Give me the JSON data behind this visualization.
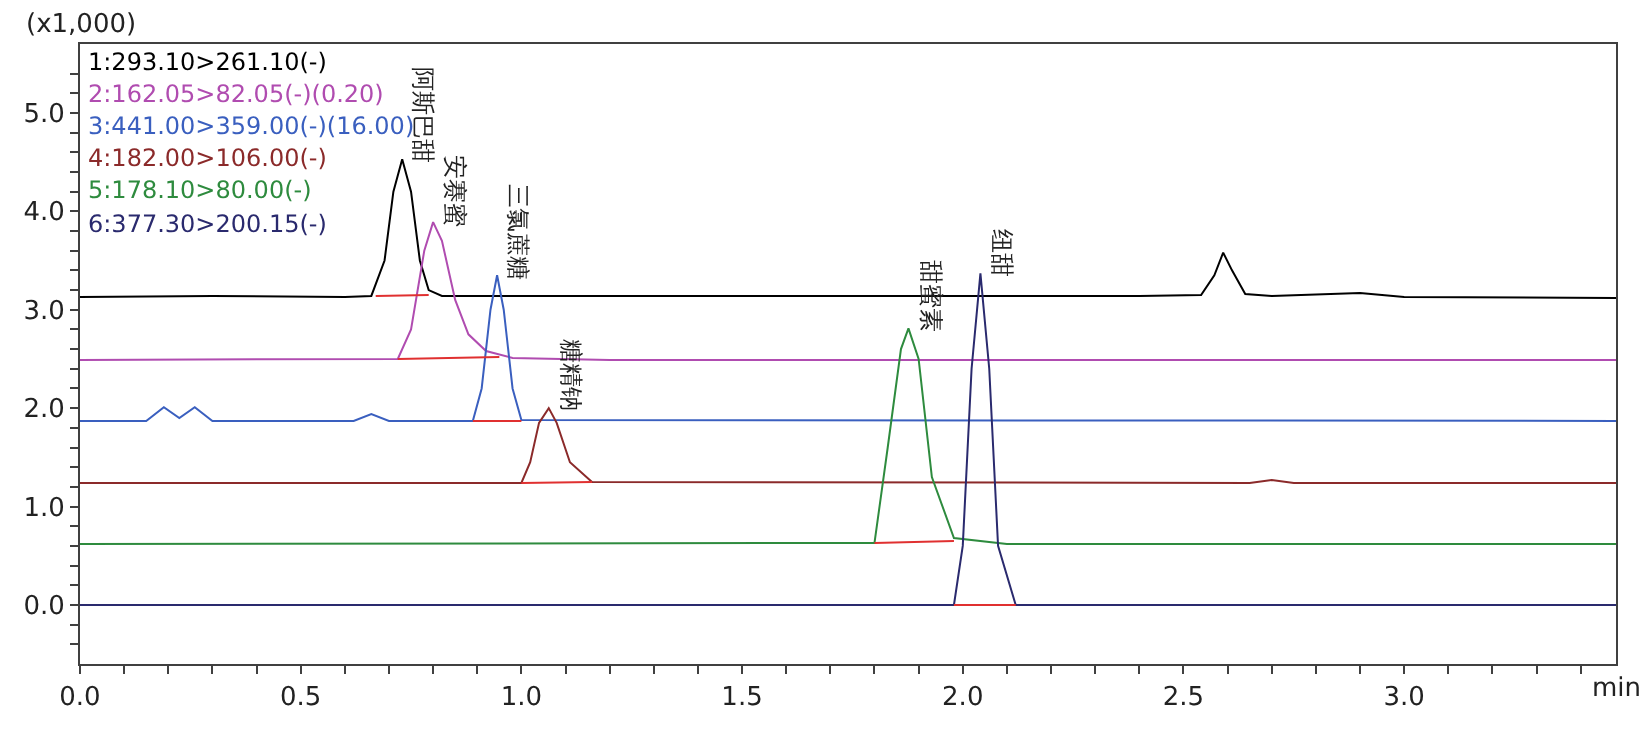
{
  "chart_data": {
    "type": "line",
    "ylabel": "(x1,000)",
    "xlabel": "min",
    "legend": "top left",
    "marker": "none",
    "line_style": "solid",
    "xlim": [
      0,
      3.48
    ],
    "ylim": [
      -0.6,
      5.7
    ],
    "xticks": [
      "0.0",
      {
        "value": 0.1,
        "label": null
      },
      {
        "value": 0.2,
        "label": null
      },
      {
        "value": 0.3,
        "label": null
      },
      {
        "value": 0.4,
        "label": null
      },
      {
        "value": 0.5,
        "label": "0.5"
      },
      {
        "value": 0.6,
        "label": null
      },
      {
        "value": 0.7,
        "label": null
      },
      {
        "value": 0.8,
        "label": null
      },
      {
        "value": 0.9,
        "label": null
      },
      {
        "value": 1.0,
        "label": "1.0"
      },
      {
        "value": 1.1,
        "label": null
      },
      {
        "value": 1.2,
        "label": null
      },
      {
        "value": 1.3,
        "label": null
      },
      {
        "value": 1.4,
        "label": null
      },
      {
        "value": 1.5,
        "label": "1.5"
      },
      {
        "value": 1.6,
        "label": null
      },
      {
        "value": 1.7,
        "label": null
      },
      {
        "value": 1.8,
        "label": null
      },
      {
        "value": 1.9,
        "label": null
      },
      {
        "value": 2.0,
        "label": "2.0"
      },
      {
        "value": 2.1,
        "label": null
      },
      {
        "value": 2.2,
        "label": null
      },
      {
        "value": 2.3,
        "label": null
      },
      {
        "value": 2.4,
        "label": null
      },
      {
        "value": 2.5,
        "label": "2.5"
      },
      {
        "value": 2.6,
        "label": null
      },
      {
        "value": 2.7,
        "label": null
      },
      {
        "value": 2.8,
        "label": null
      },
      {
        "value": 2.9,
        "label": null
      },
      {
        "value": 3.0,
        "label": "3.0"
      },
      {
        "value": 3.1,
        "label": null
      },
      {
        "value": 3.2,
        "label": null
      },
      {
        "value": 3.3,
        "label": null
      },
      {
        "value": 3.4,
        "label": null
      }
    ],
    "yticks": [
      {
        "value": -0.4,
        "label": null
      },
      {
        "value": -0.2,
        "label": null
      },
      {
        "value": 0,
        "label": "0.0"
      },
      {
        "value": 0.2,
        "label": null
      },
      {
        "value": 0.4,
        "label": null
      },
      {
        "value": 0.6,
        "label": null
      },
      {
        "value": 0.8,
        "label": null
      },
      {
        "value": 1,
        "label": "1.0"
      },
      {
        "value": 1.2,
        "label": null
      },
      {
        "value": 1.4,
        "label": null
      },
      {
        "value": 1.6,
        "label": null
      },
      {
        "value": 1.8,
        "label": null
      },
      {
        "value": 2,
        "label": "2.0"
      },
      {
        "value": 2.2,
        "label": null
      },
      {
        "value": 2.4,
        "label": null
      },
      {
        "value": 2.6,
        "label": null
      },
      {
        "value": 2.8,
        "label": null
      },
      {
        "value": 3,
        "label": "3.0"
      },
      {
        "value": 3.2,
        "label": null
      },
      {
        "value": 3.4,
        "label": null
      },
      {
        "value": 3.6,
        "label": null
      },
      {
        "value": 3.8,
        "label": null
      },
      {
        "value": 4,
        "label": "4.0"
      },
      {
        "value": 4.2,
        "label": null
      },
      {
        "value": 4.4,
        "label": null
      },
      {
        "value": 4.6,
        "label": null
      },
      {
        "value": 4.8,
        "label": null
      },
      {
        "value": 5,
        "label": "5.0"
      },
      {
        "value": 5.2,
        "label": null
      },
      {
        "value": 5.4,
        "label": null
      }
    ],
    "series": [
      {
        "name": "1:293.10>261.10(-)",
        "color": "#000000",
        "x": [
          0,
          0.3,
          0.6,
          0.66,
          0.69,
          0.71,
          0.73,
          0.75,
          0.77,
          0.79,
          0.82,
          0.9,
          1.5,
          2.4,
          2.54,
          2.57,
          2.59,
          2.61,
          2.64,
          2.7,
          2.9,
          3.0,
          3.48
        ],
        "values": [
          3.13,
          3.14,
          3.13,
          3.14,
          3.5,
          4.2,
          4.53,
          4.2,
          3.5,
          3.2,
          3.14,
          3.14,
          3.14,
          3.14,
          3.15,
          3.35,
          3.58,
          3.4,
          3.16,
          3.14,
          3.17,
          3.13,
          3.12
        ]
      },
      {
        "name": "2:162.05>82.05(-)(0.20)",
        "color": "#b04cb0",
        "x": [
          0,
          0.72,
          0.75,
          0.78,
          0.8,
          0.82,
          0.85,
          0.88,
          0.92,
          0.98,
          1.2,
          3.48
        ],
        "values": [
          2.49,
          2.5,
          2.8,
          3.6,
          3.89,
          3.7,
          3.1,
          2.75,
          2.58,
          2.51,
          2.49,
          2.49
        ]
      },
      {
        "name": "3:441.00>359.00(-)(16.00)",
        "color": "#3a5fbf",
        "x": [
          0,
          0.15,
          0.19,
          0.225,
          0.26,
          0.3,
          0.62,
          0.66,
          0.7,
          0.89,
          0.91,
          0.93,
          0.945,
          0.96,
          0.98,
          1.0,
          3.48
        ],
        "values": [
          1.87,
          1.87,
          2.01,
          1.9,
          2.01,
          1.87,
          1.87,
          1.94,
          1.87,
          1.87,
          2.2,
          3.0,
          3.35,
          3.0,
          2.2,
          1.88,
          1.87
        ]
      },
      {
        "name": "4:182.00>106.00(-)",
        "color": "#8b2a2a",
        "x": [
          0,
          1.0,
          1.02,
          1.04,
          1.062,
          1.08,
          1.11,
          1.16,
          2.65,
          2.7,
          2.75,
          3.48
        ],
        "values": [
          1.24,
          1.24,
          1.45,
          1.85,
          2.0,
          1.85,
          1.45,
          1.25,
          1.24,
          1.27,
          1.24,
          1.24
        ]
      },
      {
        "name": "5:178.10>80.00(-)",
        "color": "#2e8b3e",
        "x": [
          0,
          1.8,
          1.83,
          1.86,
          1.877,
          1.9,
          1.93,
          1.98,
          2.1,
          3.48
        ],
        "values": [
          0.62,
          0.63,
          1.6,
          2.6,
          2.81,
          2.5,
          1.3,
          0.68,
          0.62,
          0.62
        ]
      },
      {
        "name": "6:377.30>200.15(-)",
        "color": "#2a2a6e",
        "x": [
          0,
          1.98,
          2.0,
          2.02,
          2.04,
          2.06,
          2.08,
          2.12,
          3.48
        ],
        "values": [
          0,
          0,
          0.6,
          2.4,
          3.37,
          2.4,
          0.6,
          0,
          0
        ]
      },
      {
        "color": "#e03030",
        "x": [
          0.67,
          0.79
        ],
        "values": [
          3.14,
          3.15
        ]
      },
      {
        "color": "#e03030",
        "x": [
          0.72,
          0.95
        ],
        "values": [
          2.5,
          2.52
        ]
      },
      {
        "color": "#e03030",
        "x": [
          0.89,
          1.0
        ],
        "values": [
          1.87,
          1.87
        ]
      },
      {
        "color": "#e03030",
        "x": [
          1.0,
          1.16
        ],
        "values": [
          1.24,
          1.25
        ]
      },
      {
        "color": "#e03030",
        "x": [
          1.8,
          1.98
        ],
        "values": [
          0.63,
          0.65
        ]
      },
      {
        "color": "#e03030",
        "x": [
          1.98,
          2.12
        ],
        "values": [
          0,
          0
        ]
      }
    ],
    "annotations": [
      {
        "text": "阿斯巴甜",
        "x": 0.73,
        "y": 4.53
      },
      {
        "text": "安赛蜜",
        "x": 0.8,
        "y": 3.89
      },
      {
        "text": "三氯蔗糖",
        "x": 0.945,
        "y": 3.35
      },
      {
        "text": "糖精钠",
        "x": 1.062,
        "y": 2.0
      },
      {
        "text": "甜蜜素",
        "x": 1.877,
        "y": 2.81
      },
      {
        "text": "纽甜",
        "x": 2.04,
        "y": 3.37
      }
    ]
  }
}
